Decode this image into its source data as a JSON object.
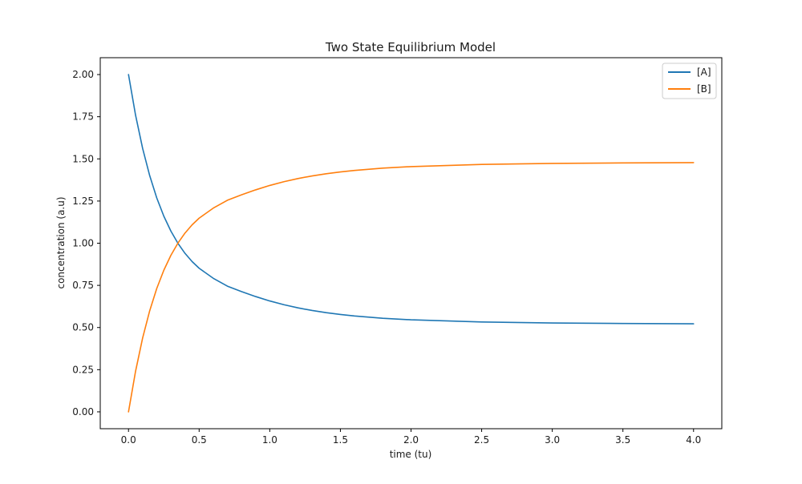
{
  "chart_data": {
    "type": "line",
    "title": "Two State Equilibrium Model",
    "xlabel": "time (tu)",
    "ylabel": "concentration (a.u)",
    "xlim": [
      -0.2,
      4.2
    ],
    "ylim": [
      -0.1,
      2.1
    ],
    "xticks": [
      0.0,
      0.5,
      1.0,
      1.5,
      2.0,
      2.5,
      3.0,
      3.5,
      4.0
    ],
    "xtick_labels": [
      "0.0",
      "0.5",
      "1.0",
      "1.5",
      "2.0",
      "2.5",
      "3.0",
      "3.5",
      "4.0"
    ],
    "yticks": [
      0.0,
      0.25,
      0.5,
      0.75,
      1.0,
      1.25,
      1.5,
      1.75,
      2.0
    ],
    "ytick_labels": [
      "0.00",
      "0.25",
      "0.50",
      "0.75",
      "1.00",
      "1.25",
      "1.50",
      "1.75",
      "2.00"
    ],
    "grid": false,
    "legend_position": "top-right",
    "x": [
      0.0,
      0.05,
      0.1,
      0.15,
      0.2,
      0.25,
      0.3,
      0.35,
      0.4,
      0.45,
      0.5,
      0.6,
      0.7,
      0.8,
      0.9,
      1.0,
      1.1,
      1.2,
      1.3,
      1.4,
      1.5,
      1.6,
      1.8,
      2.0,
      2.5,
      3.0,
      3.5,
      4.0
    ],
    "series": [
      {
        "name": "[A]",
        "color": "#1f77b4",
        "values": [
          2.0,
          1.7592,
          1.5621,
          1.4007,
          1.2685,
          1.1604,
          1.0718,
          0.9993,
          0.9399,
          0.8913,
          0.8515,
          0.792,
          0.7453,
          0.7133,
          0.6837,
          0.6575,
          0.6352,
          0.6166,
          0.601,
          0.588,
          0.5773,
          0.5684,
          0.5549,
          0.5458,
          0.533,
          0.527,
          0.524,
          0.522
        ]
      },
      {
        "name": "[B]",
        "color": "#ff7f0e",
        "values": [
          0.0,
          0.2408,
          0.4379,
          0.5993,
          0.7315,
          0.8396,
          0.9282,
          1.0007,
          1.0601,
          1.1087,
          1.1485,
          1.208,
          1.2547,
          1.2867,
          1.3163,
          1.3425,
          1.3648,
          1.3834,
          1.399,
          1.412,
          1.4227,
          1.4316,
          1.4451,
          1.4542,
          1.467,
          1.473,
          1.476,
          1.478
        ]
      }
    ]
  }
}
